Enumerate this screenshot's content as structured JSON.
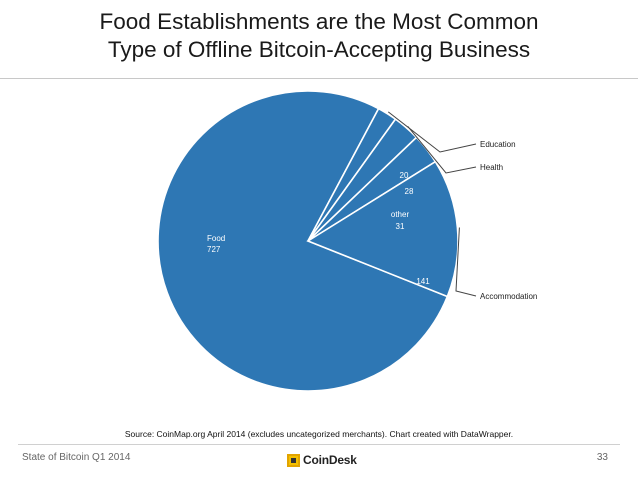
{
  "header": {
    "title_line1": "Food Establishments are the Most Common",
    "title_line2": "Type of Offline Bitcoin-Accepting Business"
  },
  "chart_data": {
    "type": "pie",
    "title": "",
    "slices": [
      {
        "label": "Food",
        "value": 727
      },
      {
        "label": "Education",
        "value": 20
      },
      {
        "label": "Health",
        "value": 28
      },
      {
        "label": "other",
        "value": 31
      },
      {
        "label": "Accommodation",
        "value": 141
      }
    ],
    "colors": {
      "slice": "#2e77b4",
      "separator": "#ffffff",
      "label_text": "#ffffff",
      "leader": "#444444"
    }
  },
  "source": "Source: CoinMap.org April 2014 (excludes uncategorized merchants). Chart created with DataWrapper.",
  "footer": {
    "left": "State of Bitcoin Q1 2014",
    "logo_text": "CoinDesk",
    "page_number": "33"
  }
}
